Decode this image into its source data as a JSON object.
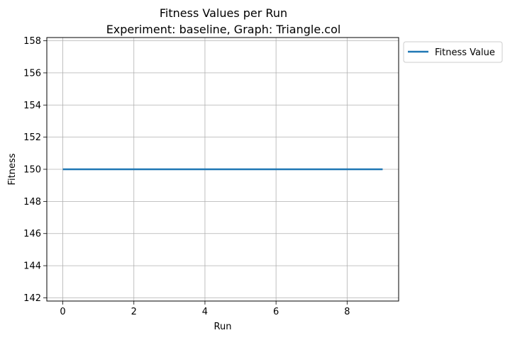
{
  "chart_data": {
    "type": "line",
    "title": "Fitness Values per Run",
    "subtitle": "Experiment: baseline, Graph: Triangle.col",
    "xlabel": "Run",
    "ylabel": "Fitness",
    "xlim": [
      -0.45,
      9.45
    ],
    "ylim": [
      141.8,
      158.2
    ],
    "xticks": [
      "0",
      "2",
      "4",
      "6",
      "8"
    ],
    "yticks": [
      "142",
      "144",
      "146",
      "148",
      "150",
      "152",
      "154",
      "156",
      "158"
    ],
    "grid": true,
    "legend_position": "outside-top-right",
    "x": [
      0,
      1,
      2,
      3,
      4,
      5,
      6,
      7,
      8,
      9
    ],
    "series": [
      {
        "name": "Fitness Value",
        "color": "#1f77b4",
        "values": [
          150,
          150,
          150,
          150,
          150,
          150,
          150,
          150,
          150,
          150
        ]
      }
    ]
  }
}
